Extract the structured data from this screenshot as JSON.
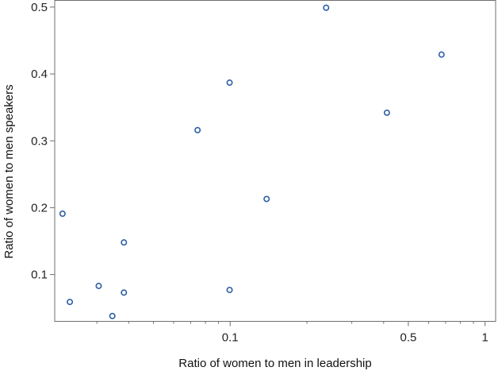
{
  "chart_data": {
    "type": "scatter",
    "title": "",
    "xlabel": "Ratio of women to men in leadership",
    "ylabel": "Ratio of women to men speakers",
    "x_scale": "log",
    "xlim": [
      0.0205,
      1.1
    ],
    "ylim": [
      0.03,
      0.51
    ],
    "x_ticks": [
      {
        "value": 0.1,
        "label": "0.1"
      },
      {
        "value": 0.5,
        "label": "0.5"
      },
      {
        "value": 1,
        "label": "1"
      }
    ],
    "x_minor_ticks": [
      0.03,
      0.04,
      0.05,
      0.06,
      0.07,
      0.08,
      0.09,
      0.2,
      0.3,
      0.4,
      0.6,
      0.7,
      0.8,
      0.9
    ],
    "y_ticks": [
      {
        "value": 0.1,
        "label": "0.1"
      },
      {
        "value": 0.2,
        "label": "0.2"
      },
      {
        "value": 0.3,
        "label": "0.3"
      },
      {
        "value": 0.4,
        "label": "0.4"
      },
      {
        "value": 0.5,
        "label": "0.5"
      }
    ],
    "grid": false,
    "legend": "none",
    "marker_color": "#2d5fa6",
    "points": [
      {
        "x": 0.022,
        "y": 0.191
      },
      {
        "x": 0.0235,
        "y": 0.059
      },
      {
        "x": 0.0305,
        "y": 0.083
      },
      {
        "x": 0.0345,
        "y": 0.038
      },
      {
        "x": 0.0383,
        "y": 0.148
      },
      {
        "x": 0.0383,
        "y": 0.073
      },
      {
        "x": 0.0745,
        "y": 0.316
      },
      {
        "x": 0.0995,
        "y": 0.387
      },
      {
        "x": 0.0995,
        "y": 0.077
      },
      {
        "x": 0.139,
        "y": 0.213
      },
      {
        "x": 0.238,
        "y": 0.499
      },
      {
        "x": 0.412,
        "y": 0.342
      },
      {
        "x": 0.675,
        "y": 0.429
      }
    ]
  }
}
